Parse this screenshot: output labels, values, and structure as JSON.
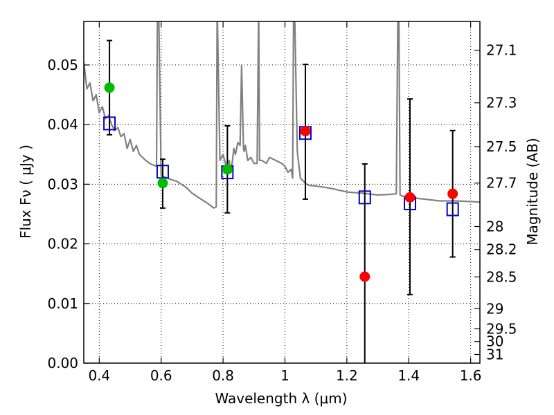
{
  "chart_data": {
    "type": "scatter",
    "xlabel": "Wavelength  λ (μm)",
    "ylabel": "Flux  Fν ( μJy )",
    "y2label": "Magnitude (AB)",
    "xlim": [
      0.35,
      1.63
    ],
    "ylim": [
      0.0,
      0.0573
    ],
    "grid": true,
    "x_ticks": [
      0.4,
      0.6,
      0.8,
      1.0,
      1.2,
      1.4,
      1.6
    ],
    "x_tick_labels": [
      "0.4",
      "0.6",
      "0.8",
      "1",
      "1.2",
      "1.4",
      "1.6"
    ],
    "y_ticks": [
      0.0,
      0.01,
      0.02,
      0.03,
      0.04,
      0.05
    ],
    "y_tick_labels": [
      "0.00",
      "0.01",
      "0.02",
      "0.03",
      "0.04",
      "0.05"
    ],
    "y2_ticks": [
      27.1,
      27.3,
      27.5,
      27.7,
      28,
      28.2,
      28.5,
      29,
      29.5,
      30,
      31
    ],
    "y2_tick_labels": [
      "27.1",
      "27.3",
      "27.5",
      "27.7",
      "28",
      "28.2",
      "28.5",
      "29",
      "29.5",
      "30",
      "31"
    ],
    "series": [
      {
        "kind": "template-spectrum",
        "color": "#808080",
        "x": [
          0.35,
          0.36,
          0.37,
          0.38,
          0.39,
          0.4,
          0.41,
          0.42,
          0.43,
          0.44,
          0.45,
          0.46,
          0.47,
          0.48,
          0.49,
          0.5,
          0.51,
          0.52,
          0.53,
          0.54,
          0.55,
          0.56,
          0.57,
          0.585,
          0.588,
          0.592,
          0.6,
          0.62,
          0.65,
          0.68,
          0.7,
          0.72,
          0.75,
          0.77,
          0.778,
          0.781,
          0.79,
          0.8,
          0.81,
          0.82,
          0.826,
          0.835,
          0.84,
          0.848,
          0.855,
          0.86,
          0.866,
          0.868,
          0.872,
          0.88,
          0.89,
          0.9,
          0.91,
          0.915,
          0.918,
          0.925,
          0.94,
          0.95,
          0.97,
          0.99,
          1.0,
          1.01,
          1.02,
          1.025,
          1.028,
          1.031,
          1.04,
          1.05,
          1.06,
          1.07,
          1.08,
          1.1,
          1.15,
          1.2,
          1.25,
          1.3,
          1.34,
          1.36,
          1.365,
          1.368,
          1.372,
          1.38,
          1.4,
          1.45,
          1.5,
          1.55,
          1.6,
          1.63
        ],
        "y": [
          0.0505,
          0.046,
          0.047,
          0.044,
          0.045,
          0.042,
          0.043,
          0.041,
          0.0415,
          0.04,
          0.039,
          0.0395,
          0.038,
          0.0385,
          0.036,
          0.0375,
          0.0355,
          0.0365,
          0.035,
          0.0345,
          0.034,
          0.0336,
          0.0333,
          0.033,
          0.06,
          0.06,
          0.0315,
          0.031,
          0.0305,
          0.0295,
          0.0285,
          0.0278,
          0.0268,
          0.026,
          0.0262,
          0.06,
          0.034,
          0.035,
          0.033,
          0.034,
          0.032,
          0.036,
          0.035,
          0.037,
          0.0365,
          0.05,
          0.036,
          0.0355,
          0.0365,
          0.034,
          0.0345,
          0.0335,
          0.0335,
          0.06,
          0.034,
          0.034,
          0.0335,
          0.0345,
          0.034,
          0.0335,
          0.033,
          0.032,
          0.0325,
          0.031,
          0.06,
          0.06,
          0.0355,
          0.031,
          0.0305,
          0.03,
          0.0298,
          0.0297,
          0.0293,
          0.0287,
          0.0285,
          0.0282,
          0.0283,
          0.0284,
          0.06,
          0.06,
          0.0282,
          0.028,
          0.0278,
          0.0275,
          0.0272,
          0.0272,
          0.0271,
          0.027
        ]
      },
      {
        "kind": "observed-optical",
        "color": "#00bb00",
        "x": [
          0.433,
          0.605,
          0.814
        ],
        "y": [
          0.0462,
          0.0302,
          0.0325
        ],
        "err_low": [
          0.0383,
          0.026,
          0.0252
        ],
        "err_high": [
          0.0541,
          0.0342,
          0.0398
        ]
      },
      {
        "kind": "observed-nir",
        "color": "#ff0000",
        "x": [
          1.066,
          1.258,
          1.404,
          1.542
        ],
        "y": [
          0.0389,
          0.0145,
          0.0278,
          0.0284
        ],
        "err_low": [
          0.0275,
          0.0,
          0.0115,
          0.0178
        ],
        "err_high": [
          0.0501,
          0.0334,
          0.0443,
          0.039
        ]
      },
      {
        "kind": "model-photometry",
        "color": "#0000cc",
        "x": [
          0.433,
          0.605,
          0.814,
          1.066,
          1.258,
          1.404,
          1.542
        ],
        "y": [
          0.0402,
          0.0321,
          0.032,
          0.0386,
          0.0278,
          0.0268,
          0.0258
        ]
      }
    ]
  }
}
